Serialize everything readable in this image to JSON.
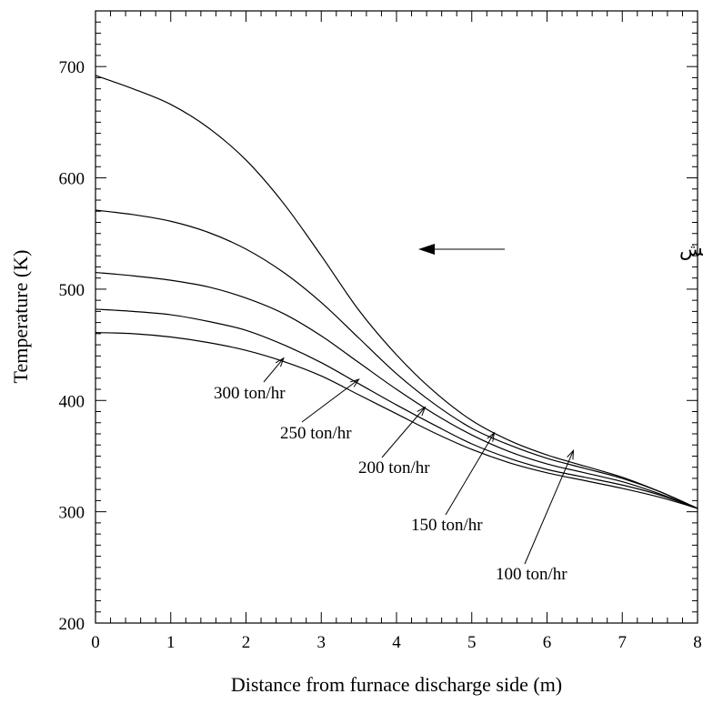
{
  "chart_data": {
    "type": "line",
    "title": "",
    "xlabel": "Distance from furnace discharge side (m)",
    "ylabel": "Temperature (K)",
    "xlim": [
      0,
      8
    ],
    "ylim": [
      200,
      750
    ],
    "x_ticks": [
      "0",
      "1",
      "2",
      "3",
      "4",
      "5",
      "6",
      "7",
      "8"
    ],
    "y_ticks": [
      "200",
      "300",
      "400",
      "500",
      "600",
      "700"
    ],
    "grid": false,
    "direction_note": "جهت حرکت شمش",
    "series": [
      {
        "name": "100 ton/hr",
        "x": [
          0,
          0.5,
          1,
          1.5,
          2,
          2.5,
          3,
          3.5,
          4,
          4.5,
          5,
          5.5,
          6,
          6.5,
          7,
          7.5,
          8
        ],
        "y": [
          692,
          680,
          666,
          645,
          616,
          577,
          530,
          481,
          441,
          408,
          382,
          364,
          351,
          341,
          331,
          318,
          303
        ],
        "label_anchor": [
          6.35,
          355
        ]
      },
      {
        "name": "150 ton/hr",
        "x": [
          0,
          0.5,
          1,
          1.5,
          2,
          2.5,
          3,
          3.5,
          4,
          4.5,
          5,
          5.5,
          6,
          6.5,
          7,
          7.5,
          8
        ],
        "y": [
          571,
          567,
          561,
          551,
          536,
          515,
          488,
          456,
          424,
          397,
          375,
          360,
          348,
          339,
          330,
          318,
          303
        ],
        "label_anchor": [
          5.3,
          371
        ]
      },
      {
        "name": "200 ton/hr",
        "x": [
          0,
          0.5,
          1,
          1.5,
          2,
          2.5,
          3,
          3.5,
          4,
          4.5,
          5,
          5.5,
          6,
          6.5,
          7,
          7.5,
          8
        ],
        "y": [
          515,
          512,
          508,
          502,
          492,
          478,
          458,
          434,
          410,
          388,
          369,
          354,
          343,
          335,
          327,
          316,
          303
        ],
        "label_anchor": [
          4.38,
          394
        ]
      },
      {
        "name": "250 ton/hr",
        "x": [
          0,
          0.5,
          1,
          1.5,
          2,
          2.5,
          3,
          3.5,
          4,
          4.5,
          5,
          5.5,
          6,
          6.5,
          7,
          7.5,
          8
        ],
        "y": [
          482,
          480,
          477,
          471,
          463,
          450,
          434,
          415,
          396,
          378,
          361,
          348,
          338,
          331,
          324,
          315,
          303
        ],
        "label_anchor": [
          3.5,
          419
        ]
      },
      {
        "name": "300 ton/hr",
        "x": [
          0,
          0.5,
          1,
          1.5,
          2,
          2.5,
          3,
          3.5,
          4,
          4.5,
          5,
          5.5,
          6,
          6.5,
          7,
          7.5,
          8
        ],
        "y": [
          461,
          460,
          457,
          452,
          445,
          435,
          422,
          405,
          388,
          371,
          356,
          344,
          335,
          328,
          321,
          313,
          303
        ],
        "label_anchor": [
          2.5,
          438
        ]
      }
    ]
  }
}
